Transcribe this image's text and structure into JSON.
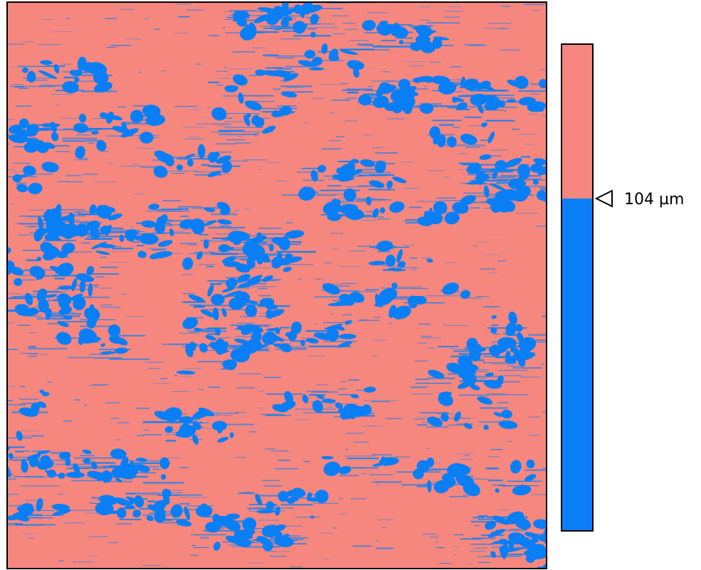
{
  "threshold_label": "104 µm"
}
